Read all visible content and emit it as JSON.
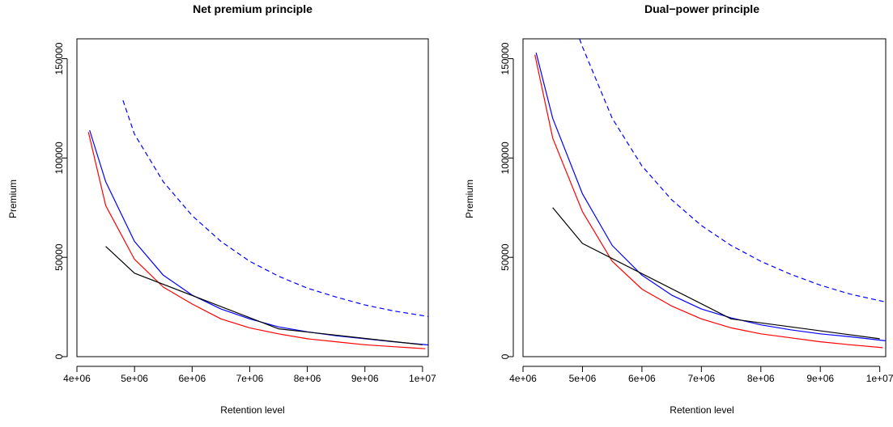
{
  "chart_data": [
    {
      "type": "line",
      "title": "Net premium principle",
      "xlabel": "Retention level",
      "ylabel": "Premium",
      "xlim": [
        4000000,
        10100000
      ],
      "ylim": [
        0,
        160000
      ],
      "xticks": [
        4000000,
        5000000,
        6000000,
        7000000,
        8000000,
        9000000,
        10000000
      ],
      "xtick_labels": [
        "4e+06",
        "5e+06",
        "6e+06",
        "7e+06",
        "8e+06",
        "9e+06",
        "1e+07"
      ],
      "yticks": [
        0,
        50000,
        100000,
        150000
      ],
      "ytick_labels": [
        "0",
        "50000",
        "100000",
        "150000"
      ],
      "grid": false,
      "series": [
        {
          "color": "#ff0000",
          "style": "solid",
          "x": [
            4200000,
            4500000,
            5000000,
            5500000,
            6000000,
            6500000,
            7000000,
            7500000,
            8000000,
            8500000,
            9000000,
            9500000,
            10050000
          ],
          "y": [
            113000,
            76000,
            49000,
            35000,
            26500,
            19000,
            14500,
            11500,
            9000,
            7500,
            6000,
            5000,
            4000
          ]
        },
        {
          "color": "#0000ff",
          "style": "solid",
          "x": [
            4220000,
            4500000,
            5000000,
            5500000,
            6000000,
            6500000,
            7000000,
            7500000,
            8000000,
            8500000,
            9000000,
            9500000,
            10250000
          ],
          "y": [
            114000,
            88000,
            58000,
            41000,
            31000,
            24000,
            19000,
            15000,
            12500,
            10500,
            9000,
            7500,
            5500
          ]
        },
        {
          "color": "#0000ff",
          "style": "dashed",
          "x": [
            4800000,
            5000000,
            5500000,
            6000000,
            6500000,
            7000000,
            7500000,
            8000000,
            8500000,
            9000000,
            9500000,
            10250000
          ],
          "y": [
            129000,
            112000,
            88000,
            71000,
            58000,
            48000,
            40500,
            34500,
            30000,
            26000,
            23000,
            19500
          ]
        },
        {
          "color": "#000000",
          "style": "solid",
          "x": [
            4500000,
            5000000,
            7500000,
            10000000
          ],
          "y": [
            55500,
            42000,
            14000,
            6000
          ]
        }
      ]
    },
    {
      "type": "line",
      "title": "Dual−power principle",
      "xlabel": "Retention level",
      "ylabel": "Premium",
      "xlim": [
        4000000,
        10100000
      ],
      "ylim": [
        0,
        160000
      ],
      "xticks": [
        4000000,
        5000000,
        6000000,
        7000000,
        8000000,
        9000000,
        10000000
      ],
      "xtick_labels": [
        "4e+06",
        "5e+06",
        "6e+06",
        "7e+06",
        "8e+06",
        "9e+06",
        "1e+07"
      ],
      "yticks": [
        0,
        50000,
        100000,
        150000
      ],
      "ytick_labels": [
        "0",
        "50000",
        "100000",
        "150000"
      ],
      "grid": false,
      "series": [
        {
          "color": "#ff0000",
          "style": "solid",
          "x": [
            4200000,
            4500000,
            5000000,
            5500000,
            6000000,
            6500000,
            7000000,
            7500000,
            8000000,
            8500000,
            9000000,
            9500000,
            10050000
          ],
          "y": [
            152000,
            110000,
            73000,
            48000,
            34000,
            25500,
            19000,
            14500,
            11500,
            9500,
            7500,
            6000,
            4500
          ]
        },
        {
          "color": "#0000ff",
          "style": "solid",
          "x": [
            4220000,
            4500000,
            5000000,
            5500000,
            6000000,
            6500000,
            7000000,
            7500000,
            8000000,
            8500000,
            9000000,
            9500000,
            10250000
          ],
          "y": [
            153000,
            120000,
            82000,
            56000,
            41000,
            31000,
            24000,
            19500,
            16000,
            13500,
            11500,
            10000,
            7500
          ]
        },
        {
          "color": "#0000ff",
          "style": "dashed",
          "x": [
            4950000,
            5000000,
            5500000,
            6000000,
            6500000,
            7000000,
            7500000,
            8000000,
            8500000,
            9000000,
            9500000,
            10250000
          ],
          "y": [
            160000,
            156000,
            120000,
            96000,
            79000,
            66000,
            56000,
            48000,
            41500,
            36000,
            31500,
            26500
          ]
        },
        {
          "color": "#000000",
          "style": "solid",
          "x": [
            4500000,
            5000000,
            7500000,
            10000000
          ],
          "y": [
            75000,
            57000,
            19000,
            9000
          ]
        }
      ]
    }
  ]
}
